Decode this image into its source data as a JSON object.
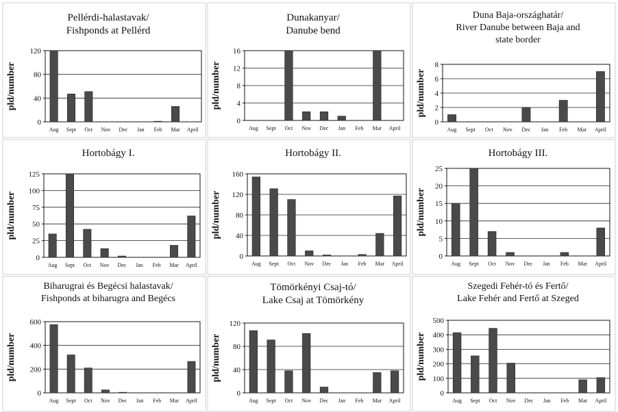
{
  "chart_data": [
    {
      "type": "bar",
      "title_lines": [
        "Pellérdi-halastavak/",
        "Fishponds at Pellérd"
      ],
      "ylabel": "pld/number",
      "categories": [
        "Aug",
        "Sept",
        "Oct",
        "Nov",
        "Dec",
        "Jan",
        "Feb",
        "Mar",
        "April"
      ],
      "values": [
        120,
        47,
        51,
        0,
        0,
        0,
        1,
        26,
        0
      ],
      "ylim": [
        0,
        120
      ],
      "yticks": [
        0,
        40,
        80,
        120
      ],
      "grid": true
    },
    {
      "type": "bar",
      "title_lines": [
        "Dunakanyar/",
        "Danube bend"
      ],
      "ylabel": "pld/number",
      "categories": [
        "Aug",
        "Sept",
        "Oct",
        "Nov",
        "Dec",
        "Jan",
        "Feb",
        "Mar",
        "April"
      ],
      "values": [
        0,
        0,
        16,
        2,
        2,
        1,
        0,
        16,
        0
      ],
      "ylim": [
        0,
        16
      ],
      "yticks": [
        0,
        4,
        8,
        12,
        16
      ],
      "grid": true
    },
    {
      "type": "bar",
      "title_lines": [
        "Duna Baja-országhatár/",
        "River Danube between Baja and",
        "state border"
      ],
      "ylabel": "pld/number",
      "categories": [
        "Aug",
        "Sept",
        "Oct",
        "Nov",
        "Dec",
        "Jan",
        "Feb",
        "Mar",
        "April"
      ],
      "values": [
        1,
        0,
        0,
        0,
        2,
        0,
        3,
        0,
        7
      ],
      "ylim": [
        0,
        8
      ],
      "yticks": [
        0,
        2,
        4,
        6,
        8
      ],
      "grid": true
    },
    {
      "type": "bar",
      "title_lines": [
        "Hortobágy I."
      ],
      "ylabel": "pld/number",
      "categories": [
        "Aug",
        "Sept",
        "Oct",
        "Nov",
        "Dec",
        "Jan",
        "Feb",
        "Mar",
        "April"
      ],
      "values": [
        35,
        125,
        42,
        13,
        2,
        0,
        0,
        18,
        62
      ],
      "ylim": [
        0,
        125
      ],
      "yticks": [
        0,
        25,
        50,
        75,
        100,
        125
      ],
      "grid": true
    },
    {
      "type": "bar",
      "title_lines": [
        "Hortobágy II."
      ],
      "ylabel": "pld/number",
      "categories": [
        "Aug",
        "Sept",
        "Oct",
        "Nov",
        "Dec",
        "Jan",
        "Feb",
        "Mar",
        "April"
      ],
      "values": [
        154,
        131,
        110,
        10,
        2,
        0,
        3,
        44,
        117
      ],
      "ylim": [
        0,
        160
      ],
      "yticks": [
        0,
        40,
        80,
        120,
        160
      ],
      "grid": true
    },
    {
      "type": "bar",
      "title_lines": [
        "Hortobágy III."
      ],
      "ylabel": "pld/number",
      "categories": [
        "Aug",
        "Sept",
        "Oct",
        "Nov",
        "Dec",
        "Jan",
        "Feb",
        "Mar",
        "April"
      ],
      "values": [
        15,
        25,
        7,
        1,
        0,
        0,
        1,
        0,
        8
      ],
      "ylim": [
        0,
        25
      ],
      "yticks": [
        0,
        5,
        10,
        15,
        20,
        25
      ],
      "grid": true
    },
    {
      "type": "bar",
      "title_lines": [
        "Biharugrai és Begécsi halastavak/",
        "Fishponds at biharugra and Begécs"
      ],
      "ylabel": "pld/number",
      "categories": [
        "Aug",
        "Sept",
        "Oct",
        "Nov",
        "Dec",
        "Jan",
        "Feb",
        "Mar",
        "April"
      ],
      "values": [
        575,
        320,
        210,
        25,
        5,
        0,
        0,
        0,
        265
      ],
      "ylim": [
        0,
        600
      ],
      "yticks": [
        0,
        200,
        400,
        600
      ],
      "grid": true
    },
    {
      "type": "bar",
      "title_lines": [
        "Tömörkényi Csaj-tó/",
        "Lake Csaj at Tömörkény"
      ],
      "ylabel": "pld/number",
      "categories": [
        "Aug",
        "Sept",
        "Oct",
        "Nov",
        "Dec",
        "Jan",
        "Feb",
        "Mar",
        "April"
      ],
      "values": [
        107,
        91,
        38,
        102,
        10,
        0,
        0,
        35,
        38
      ],
      "ylim": [
        0,
        120
      ],
      "yticks": [
        0,
        40,
        80,
        120
      ],
      "grid": true
    },
    {
      "type": "bar",
      "title_lines": [
        "Szegedi Fehér-tó és Fertő/",
        "Lake Fehér and Fertő at Szeged"
      ],
      "ylabel": "pld/number",
      "categories": [
        "Aug",
        "Sept",
        "Oct",
        "Nov",
        "Dec",
        "Jan",
        "Feb",
        "Mar",
        "April"
      ],
      "values": [
        415,
        255,
        445,
        205,
        0,
        0,
        0,
        90,
        105
      ],
      "ylim": [
        0,
        500
      ],
      "yticks": [
        0,
        100,
        200,
        300,
        400,
        500
      ],
      "grid": true
    }
  ],
  "colors": {
    "bar": "#4a4a4a",
    "axis": "#111111",
    "grid": "#222222",
    "border": "#cfcfcf"
  }
}
